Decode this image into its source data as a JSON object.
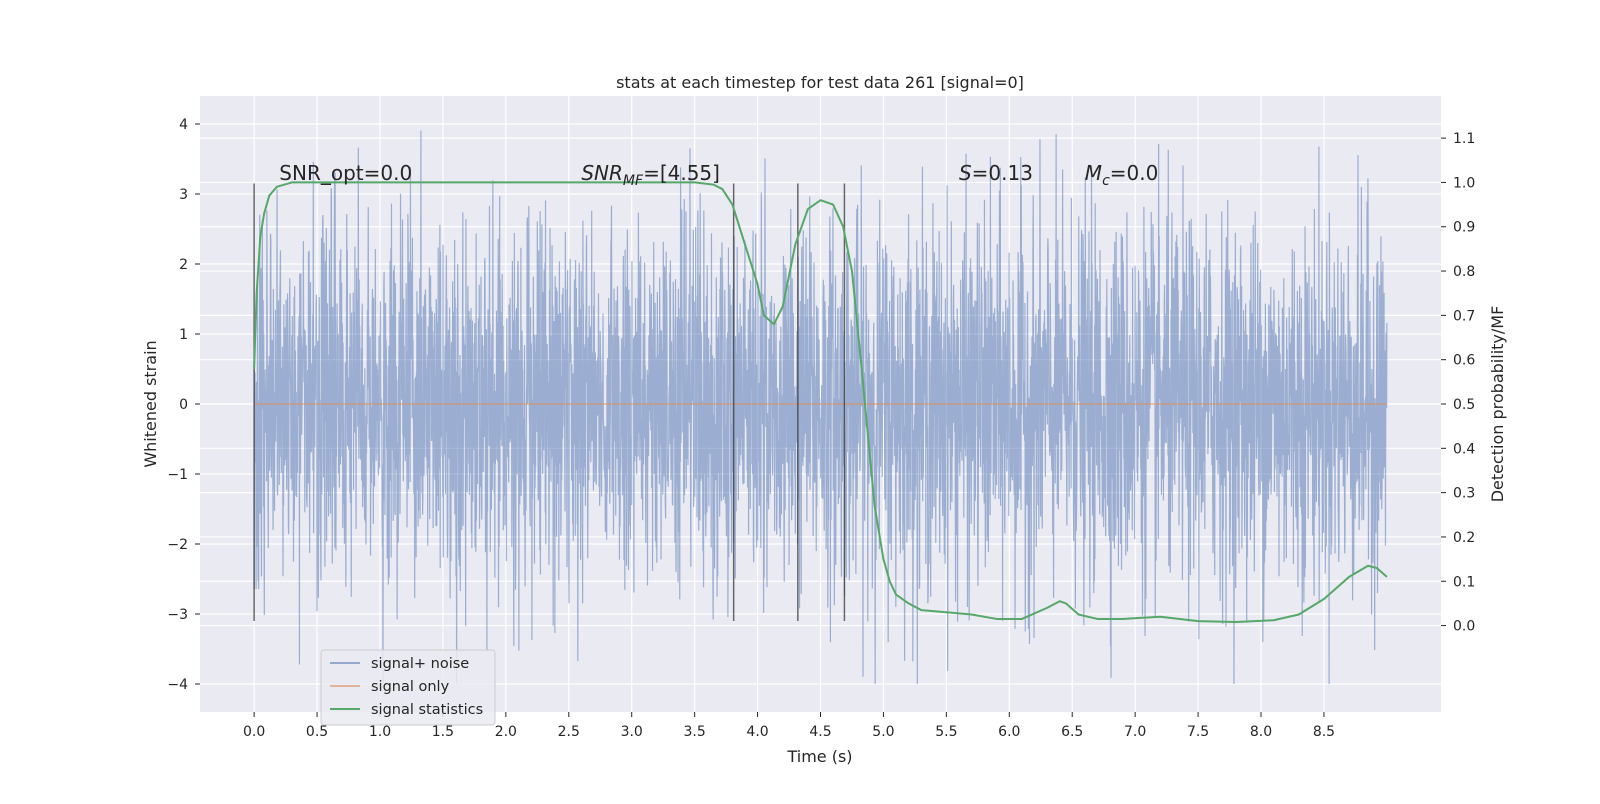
{
  "chart_data": {
    "type": "line",
    "title": "stats at each timestep for test data 261 [signal=0]",
    "xlabel": "Time (s)",
    "ylabel": "Whitened strain",
    "ylabel_right": "Detection probability/MF",
    "xlim": [
      -0.43,
      9.43
    ],
    "ylim": [
      -4.4,
      4.4
    ],
    "ylim_right": [
      -0.195,
      1.195
    ],
    "x_ticks": [
      0.0,
      0.5,
      1.0,
      1.5,
      2.0,
      2.5,
      3.0,
      3.5,
      4.0,
      4.5,
      5.0,
      5.5,
      6.0,
      6.5,
      7.0,
      7.5,
      8.0,
      8.5
    ],
    "x_tick_labels": [
      "0.0",
      "0.5",
      "1.0",
      "1.5",
      "2.0",
      "2.5",
      "3.0",
      "3.5",
      "4.0",
      "4.5",
      "5.0",
      "5.5",
      "6.0",
      "6.5",
      "7.0",
      "7.5",
      "8.0",
      "8.5"
    ],
    "y_ticks": [
      -4,
      -3,
      -2,
      -1,
      0,
      1,
      2,
      3,
      4
    ],
    "y_tick_labels": [
      "−4",
      "−3",
      "−2",
      "−1",
      "0",
      "1",
      "2",
      "3",
      "4"
    ],
    "y_right_ticks": [
      0.0,
      0.1,
      0.2,
      0.3,
      0.4,
      0.5,
      0.6,
      0.7,
      0.8,
      0.9,
      1.0,
      1.1
    ],
    "y_right_tick_labels": [
      "0.0",
      "0.1",
      "0.2",
      "0.3",
      "0.4",
      "0.5",
      "0.6",
      "0.7",
      "0.8",
      "0.9",
      "1.0",
      "1.1"
    ],
    "grid": true,
    "legend_placement": "lower-left",
    "annotations": [
      {
        "key": "snr-opt",
        "prefix": "SNR_opt",
        "sub": "",
        "value": "=0.0",
        "x": 0.2,
        "y": 3.3
      },
      {
        "key": "snr-mf",
        "prefix": "SNR",
        "sub": "MF",
        "value": "=[4.55]",
        "x": 2.6,
        "y": 3.3
      },
      {
        "key": "s-value",
        "prefix": "S",
        "sub": "",
        "value": "=0.13",
        "x": 5.6,
        "y": 3.3
      },
      {
        "key": "mc-value",
        "prefix": "M",
        "sub": "c",
        "value": "=0.0",
        "x": 6.6,
        "y": 3.3
      }
    ],
    "vertical_lines": [
      {
        "x": 0.0,
        "y_top": 3.15,
        "y_bottom": -3.1
      },
      {
        "x": 3.81,
        "y_top": 3.15,
        "y_bottom": -3.1
      },
      {
        "x": 4.32,
        "y_top": 3.15,
        "y_bottom": -3.1
      },
      {
        "x": 4.69,
        "y_top": 3.15,
        "y_bottom": -3.1
      }
    ],
    "series": [
      {
        "name": "signal+ noise",
        "color": "#4c72b0",
        "axis": "left",
        "x_range": [
          0.0,
          9.0
        ],
        "typical_amplitude": 1.3,
        "max_value": 4.0,
        "min_value": -4.0
      },
      {
        "name": "signal only",
        "color": "#dd8452",
        "axis": "left",
        "x": [
          0.0,
          9.0
        ],
        "y": [
          0.0,
          0.0
        ]
      },
      {
        "name": "signal statistics",
        "color": "#55a868",
        "axis": "right",
        "x": [
          0.0,
          0.02,
          0.05,
          0.08,
          0.12,
          0.18,
          0.3,
          0.5,
          1.0,
          2.0,
          3.0,
          3.5,
          3.65,
          3.72,
          3.8,
          3.9,
          4.0,
          4.05,
          4.13,
          4.2,
          4.3,
          4.4,
          4.5,
          4.6,
          4.68,
          4.75,
          4.82,
          4.88,
          4.93,
          5.0,
          5.05,
          5.1,
          5.2,
          5.3,
          5.5,
          5.7,
          5.9,
          6.1,
          6.3,
          6.4,
          6.45,
          6.55,
          6.7,
          6.9,
          7.2,
          7.5,
          7.8,
          8.1,
          8.3,
          8.5,
          8.7,
          8.85,
          8.92,
          9.0
        ],
        "y": [
          0.58,
          0.75,
          0.88,
          0.93,
          0.97,
          0.99,
          1.0,
          1.0,
          1.0,
          1.0,
          1.0,
          1.0,
          0.995,
          0.985,
          0.95,
          0.86,
          0.77,
          0.7,
          0.68,
          0.72,
          0.86,
          0.94,
          0.96,
          0.95,
          0.9,
          0.8,
          0.6,
          0.42,
          0.27,
          0.15,
          0.1,
          0.07,
          0.05,
          0.035,
          0.03,
          0.025,
          0.015,
          0.015,
          0.04,
          0.055,
          0.05,
          0.025,
          0.015,
          0.015,
          0.02,
          0.01,
          0.008,
          0.012,
          0.025,
          0.06,
          0.11,
          0.135,
          0.13,
          0.11
        ]
      }
    ]
  }
}
